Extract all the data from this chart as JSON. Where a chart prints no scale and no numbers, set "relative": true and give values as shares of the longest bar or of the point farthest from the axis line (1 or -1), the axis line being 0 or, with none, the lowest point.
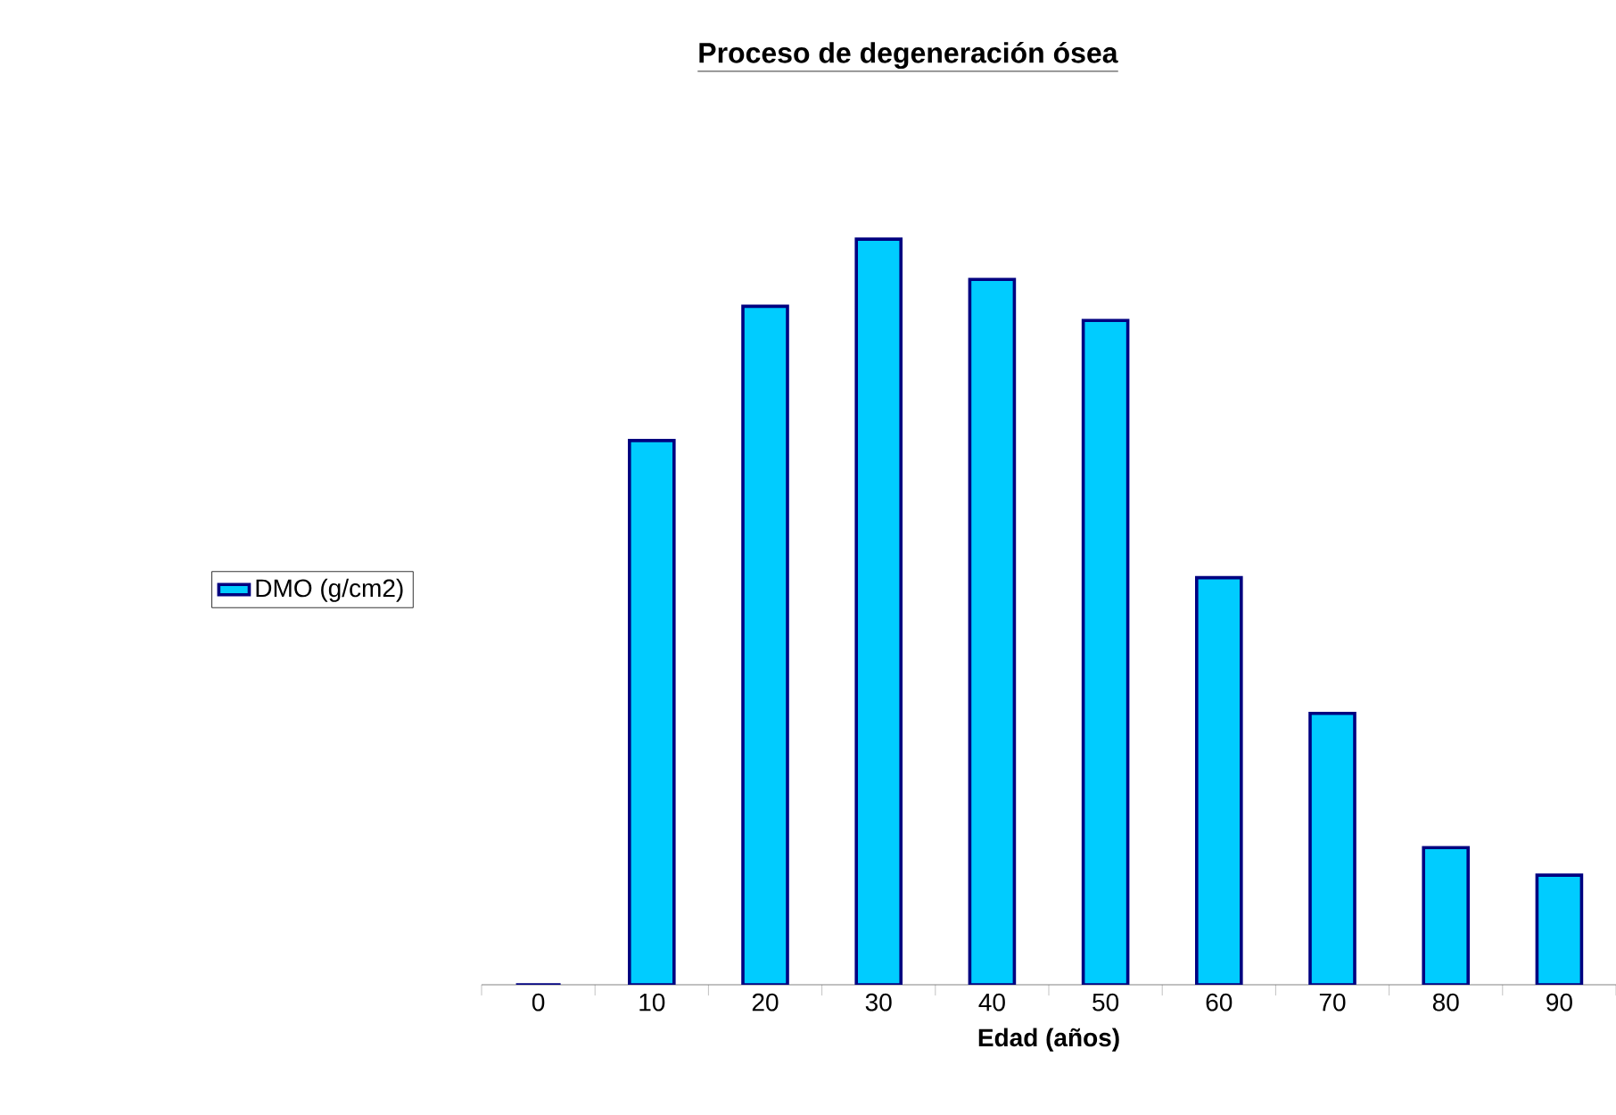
{
  "chart_data": {
    "type": "bar",
    "title": "**Proceso de degeneración ósea**",
    "xlabel": "Edad (años)",
    "relative": true,
    "legend": "left",
    "categories": [
      "0",
      "10",
      "20",
      "30",
      "40",
      "50",
      "60",
      "70",
      "80",
      "90"
    ],
    "series": [
      {
        "name": "DMO (g/cm2)",
        "color": "#00ccff",
        "values": [
          0,
          0.73,
          0.91,
          1,
          0.946,
          0.891,
          0.546,
          0.364,
          0.184,
          0.147
        ]
      }
    ]
  }
}
